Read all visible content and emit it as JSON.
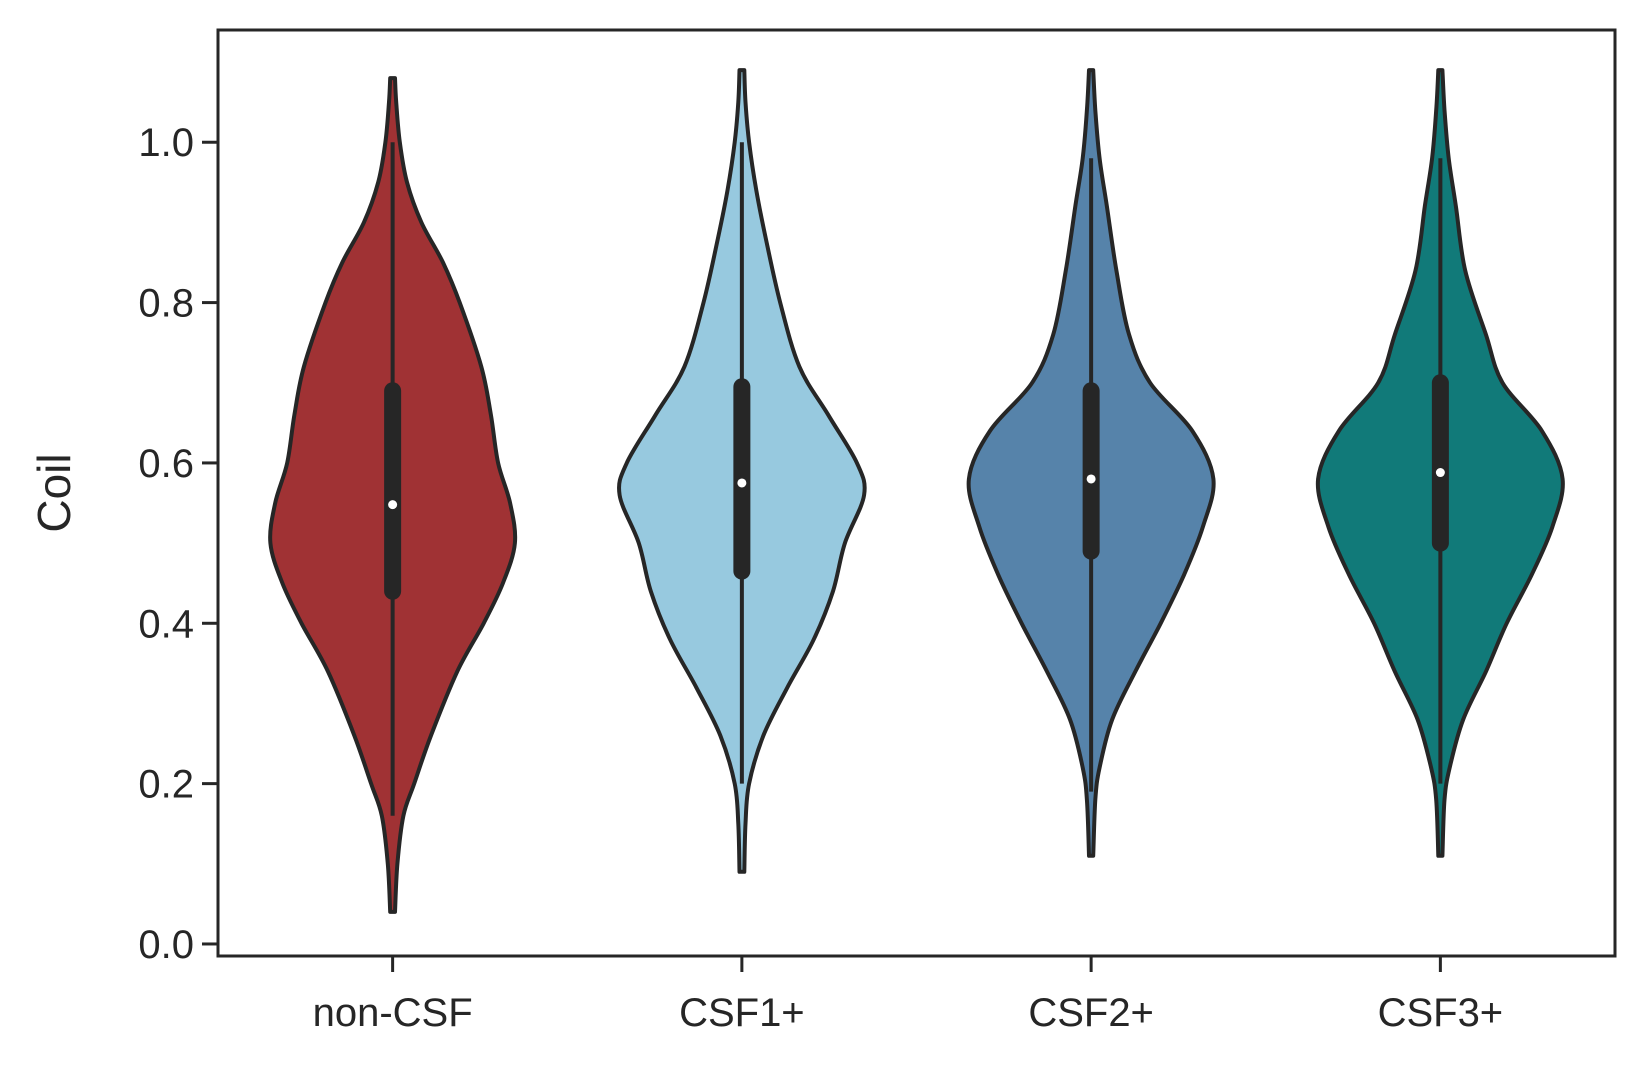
{
  "chart_data": {
    "type": "violin",
    "title": "",
    "xlabel": "",
    "ylabel": "Coil",
    "ylim": [
      -0.015,
      1.14
    ],
    "yticks": [
      0.0,
      0.2,
      0.4,
      0.6,
      0.8,
      1.0
    ],
    "ytick_labels": [
      "0.0",
      "0.2",
      "0.4",
      "0.6",
      "0.8",
      "1.0"
    ],
    "grid": false,
    "categories": [
      "non-CSF",
      "CSF1+",
      "CSF2+",
      "CSF3+"
    ],
    "series": [
      {
        "category": "non-CSF",
        "color": "#a03234",
        "min": 0.04,
        "max": 1.08,
        "whisker_low": 0.16,
        "whisker_high": 1.0,
        "q1": 0.44,
        "median": 0.548,
        "q3": 0.69,
        "density": [
          [
            0.04,
            0.01
          ],
          [
            0.1,
            0.02
          ],
          [
            0.16,
            0.045
          ],
          [
            0.2,
            0.09
          ],
          [
            0.26,
            0.16
          ],
          [
            0.34,
            0.27
          ],
          [
            0.4,
            0.38
          ],
          [
            0.45,
            0.46
          ],
          [
            0.5,
            0.51
          ],
          [
            0.55,
            0.49
          ],
          [
            0.6,
            0.44
          ],
          [
            0.66,
            0.41
          ],
          [
            0.72,
            0.37
          ],
          [
            0.8,
            0.28
          ],
          [
            0.85,
            0.21
          ],
          [
            0.9,
            0.12
          ],
          [
            0.95,
            0.06
          ],
          [
            1.0,
            0.03
          ],
          [
            1.05,
            0.015
          ],
          [
            1.08,
            0.01
          ]
        ]
      },
      {
        "category": "CSF1+",
        "color": "#97c9df",
        "min": 0.09,
        "max": 1.09,
        "whisker_low": 0.2,
        "whisker_high": 1.0,
        "q1": 0.465,
        "median": 0.575,
        "q3": 0.695,
        "density": [
          [
            0.09,
            0.01
          ],
          [
            0.15,
            0.015
          ],
          [
            0.2,
            0.03
          ],
          [
            0.26,
            0.09
          ],
          [
            0.32,
            0.19
          ],
          [
            0.38,
            0.3
          ],
          [
            0.44,
            0.38
          ],
          [
            0.5,
            0.43
          ],
          [
            0.56,
            0.51
          ],
          [
            0.6,
            0.48
          ],
          [
            0.66,
            0.36
          ],
          [
            0.72,
            0.24
          ],
          [
            0.8,
            0.16
          ],
          [
            0.88,
            0.1
          ],
          [
            0.94,
            0.06
          ],
          [
            1.0,
            0.03
          ],
          [
            1.05,
            0.015
          ],
          [
            1.09,
            0.01
          ]
        ]
      },
      {
        "category": "CSF2+",
        "color": "#5683aa",
        "min": 0.11,
        "max": 1.09,
        "whisker_low": 0.19,
        "whisker_high": 0.98,
        "q1": 0.49,
        "median": 0.58,
        "q3": 0.69,
        "density": [
          [
            0.11,
            0.01
          ],
          [
            0.18,
            0.02
          ],
          [
            0.22,
            0.04
          ],
          [
            0.28,
            0.1
          ],
          [
            0.34,
            0.21
          ],
          [
            0.4,
            0.33
          ],
          [
            0.46,
            0.44
          ],
          [
            0.52,
            0.53
          ],
          [
            0.58,
            0.58
          ],
          [
            0.64,
            0.48
          ],
          [
            0.7,
            0.28
          ],
          [
            0.76,
            0.18
          ],
          [
            0.84,
            0.12
          ],
          [
            0.92,
            0.075
          ],
          [
            0.98,
            0.04
          ],
          [
            1.04,
            0.02
          ],
          [
            1.09,
            0.01
          ]
        ]
      },
      {
        "category": "CSF3+",
        "color": "#117a79",
        "min": 0.11,
        "max": 1.09,
        "whisker_low": 0.2,
        "whisker_high": 0.98,
        "q1": 0.5,
        "median": 0.588,
        "q3": 0.7,
        "density": [
          [
            0.11,
            0.01
          ],
          [
            0.18,
            0.02
          ],
          [
            0.22,
            0.045
          ],
          [
            0.28,
            0.11
          ],
          [
            0.34,
            0.22
          ],
          [
            0.4,
            0.32
          ],
          [
            0.46,
            0.44
          ],
          [
            0.52,
            0.54
          ],
          [
            0.58,
            0.59
          ],
          [
            0.64,
            0.49
          ],
          [
            0.7,
            0.3
          ],
          [
            0.76,
            0.22
          ],
          [
            0.84,
            0.12
          ],
          [
            0.92,
            0.075
          ],
          [
            0.98,
            0.04
          ],
          [
            1.04,
            0.02
          ],
          [
            1.09,
            0.01
          ]
        ]
      }
    ]
  }
}
